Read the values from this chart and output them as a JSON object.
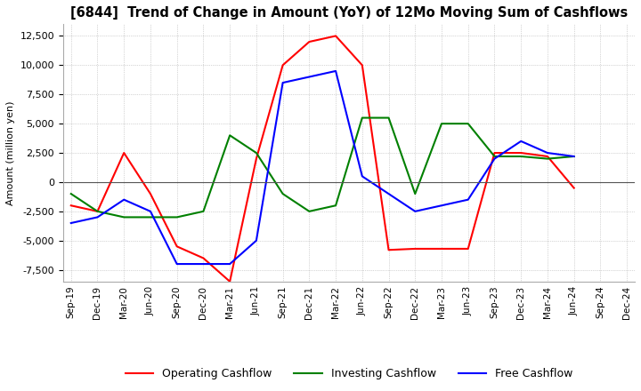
{
  "title": "[6844]  Trend of Change in Amount (YoY) of 12Mo Moving Sum of Cashflows",
  "ylabel": "Amount (million yen)",
  "ylim": [
    -8500,
    13500
  ],
  "yticks": [
    -7500,
    -5000,
    -2500,
    0,
    2500,
    5000,
    7500,
    10000,
    12500
  ],
  "x_labels": [
    "Sep-19",
    "Dec-19",
    "Mar-20",
    "Jun-20",
    "Sep-20",
    "Dec-20",
    "Mar-21",
    "Jun-21",
    "Sep-21",
    "Dec-21",
    "Mar-22",
    "Jun-22",
    "Sep-22",
    "Dec-22",
    "Mar-23",
    "Jun-23",
    "Sep-23",
    "Dec-23",
    "Mar-24",
    "Jun-24",
    "Sep-24",
    "Dec-24"
  ],
  "operating": [
    -2000,
    -2500,
    2500,
    -1000,
    -5500,
    -6500,
    -8500,
    2000,
    10000,
    12000,
    12500,
    10000,
    -5800,
    -5700,
    -5700,
    -5700,
    2500,
    2500,
    2200,
    -500,
    null,
    null
  ],
  "investing": [
    -1000,
    -2500,
    -3000,
    -3000,
    -3000,
    -2500,
    4000,
    2500,
    -1000,
    -2500,
    -2000,
    5500,
    5500,
    -1000,
    5000,
    5000,
    2200,
    2200,
    2000,
    2200,
    null,
    null
  ],
  "free": [
    -3500,
    -3000,
    -1500,
    -2500,
    -7000,
    -7000,
    -7000,
    -5000,
    8500,
    9000,
    9500,
    500,
    -1000,
    -2500,
    -2000,
    -1500,
    2000,
    3500,
    2500,
    2200,
    null,
    null
  ],
  "operating_color": "#ff0000",
  "investing_color": "#008000",
  "free_color": "#0000ff",
  "background_color": "#ffffff",
  "grid_color": "#b0b0b0"
}
